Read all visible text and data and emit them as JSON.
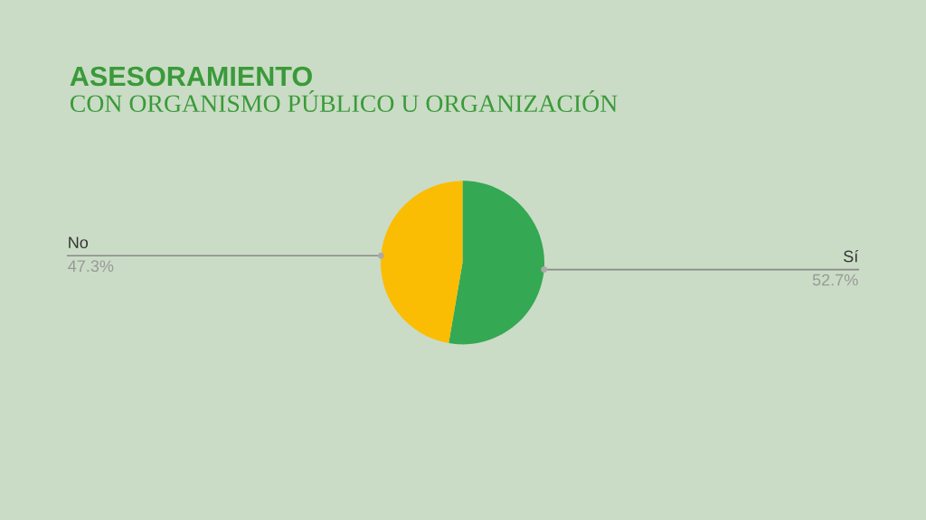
{
  "chart_data": {
    "type": "pie",
    "title": "ASESORAMIENTO",
    "subtitle": "CON ORGANISMO PÚBLICO U ORGANIZACIÓN",
    "categories": [
      "Sí",
      "No"
    ],
    "values": [
      52.7,
      47.3
    ],
    "colors": [
      "#34a853",
      "#fbbc04"
    ],
    "value_labels": [
      "52.7%",
      "47.3%"
    ]
  }
}
